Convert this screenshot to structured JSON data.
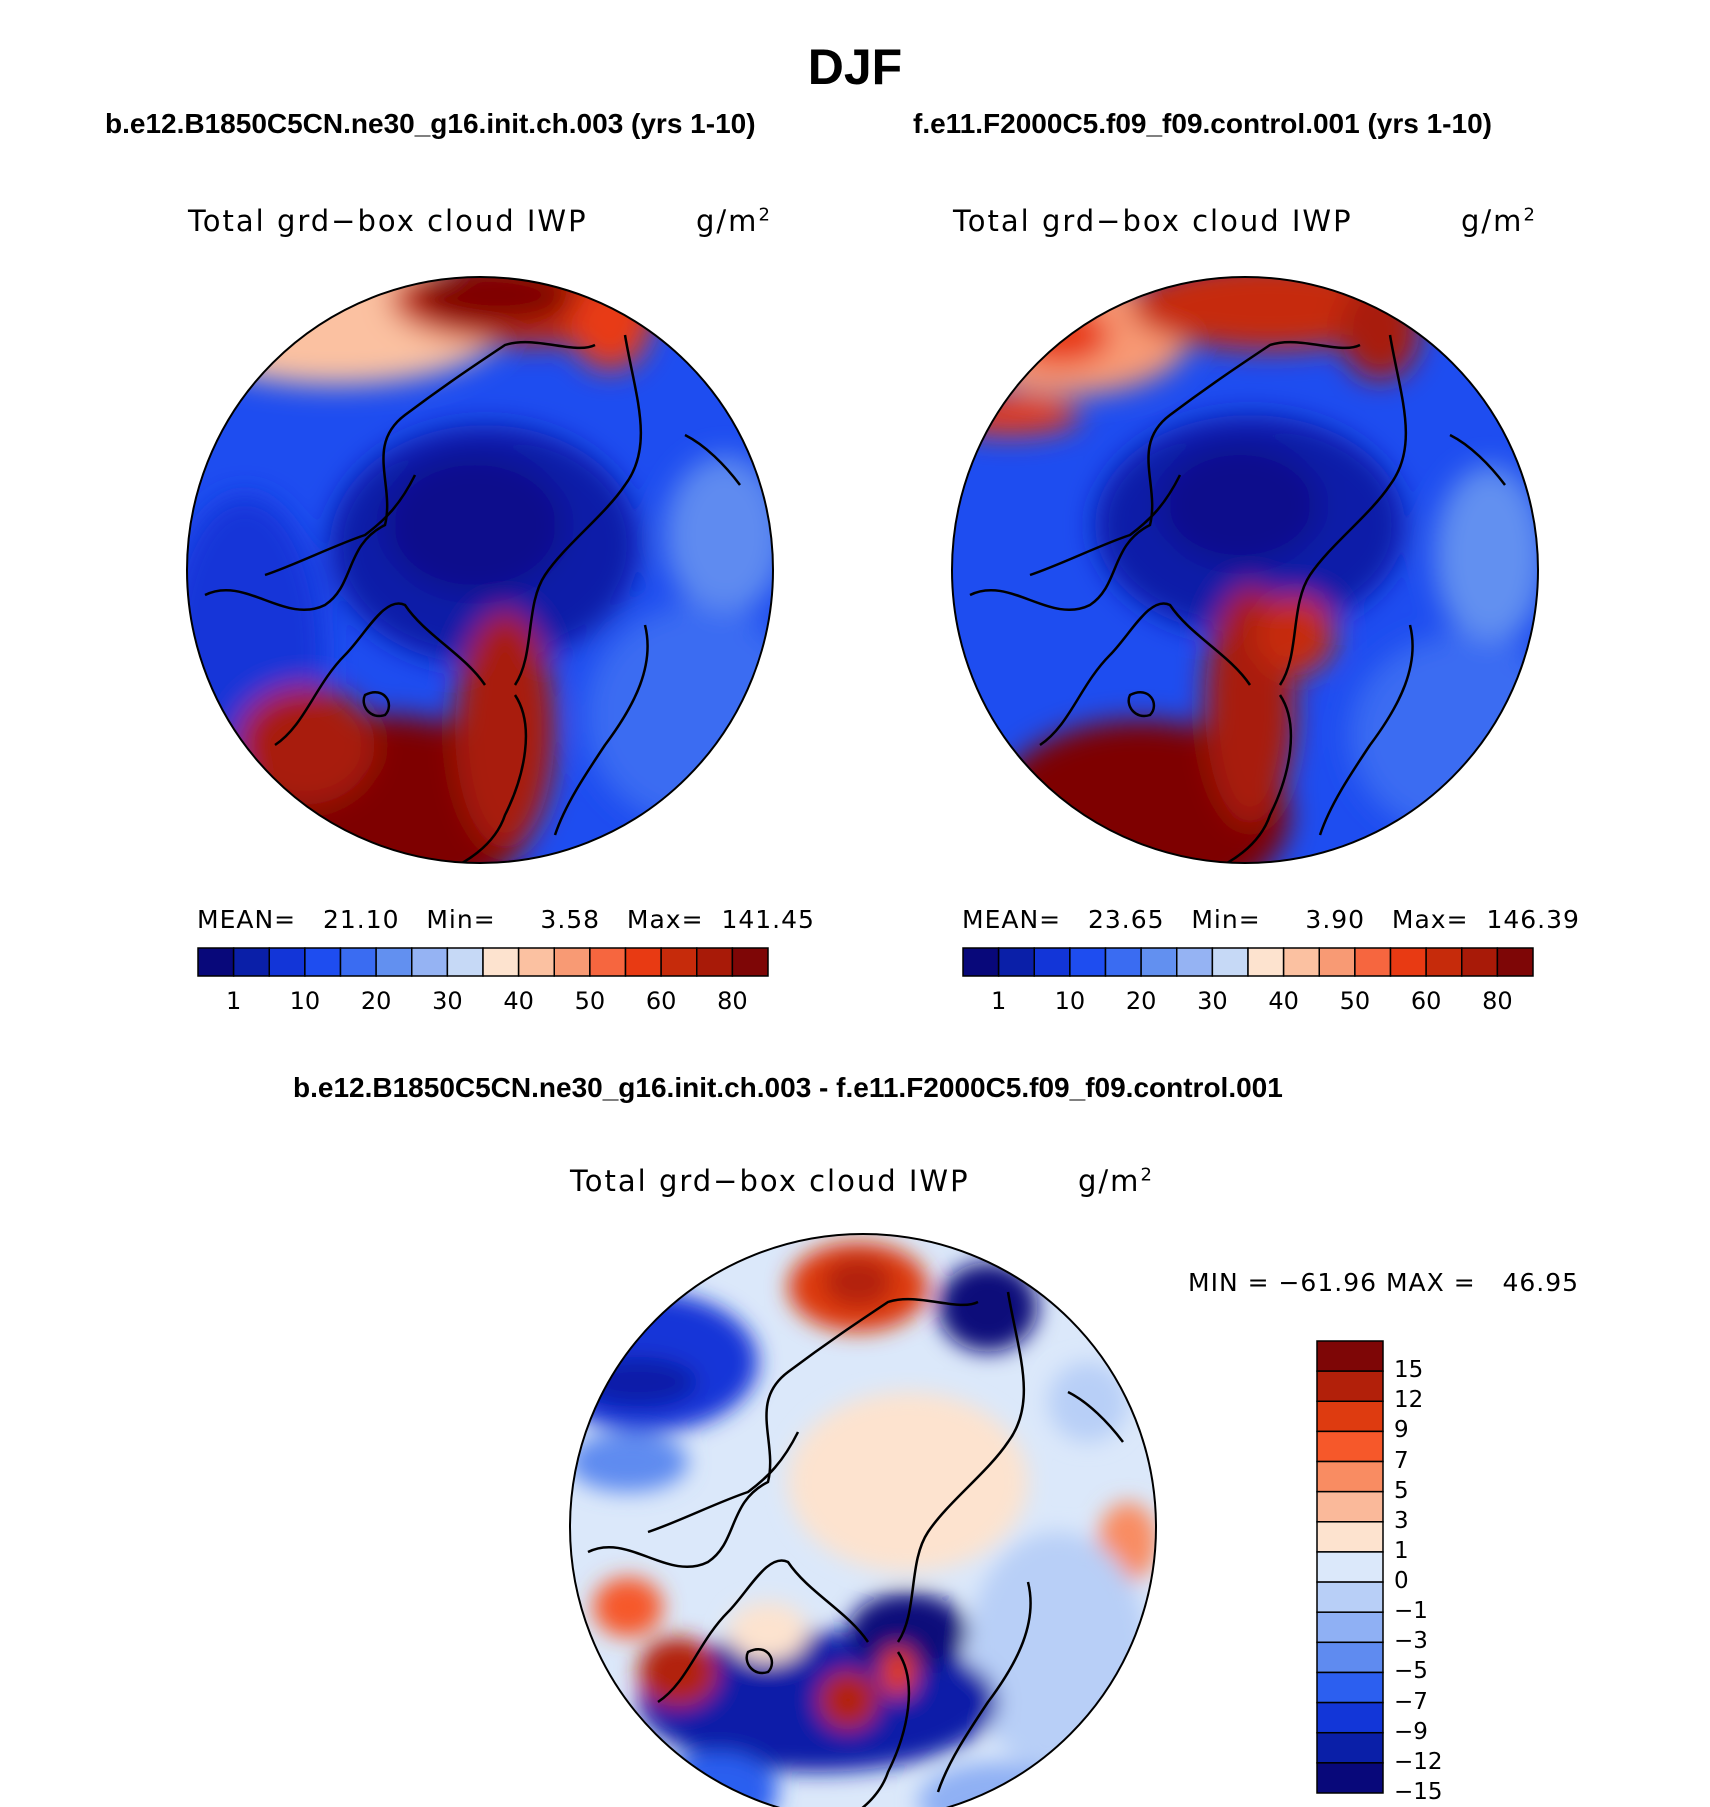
{
  "title": "DJF",
  "panel_left": {
    "case_title": "b.e12.B1850C5CN.ne30_g16.init.ch.003 (yrs 1-10)",
    "variable": "Total grd−box cloud IWP",
    "units": "g/m",
    "units_exp": "2",
    "stats": "MEAN=   21.10   Min=     3.58   Max=  141.45",
    "labels": [
      "1",
      "10",
      "20",
      "30",
      "40",
      "50",
      "60",
      "80"
    ]
  },
  "panel_right": {
    "case_title": "f.e11.F2000C5.f09_f09.control.001 (yrs 1-10)",
    "variable": "Total grd−box cloud IWP",
    "units": "g/m",
    "units_exp": "2",
    "stats": "MEAN=   23.65   Min=     3.90   Max=  146.39",
    "labels": [
      "1",
      "10",
      "20",
      "30",
      "40",
      "50",
      "60",
      "80"
    ]
  },
  "panel_diff": {
    "case_title": "b.e12.B1850C5CN.ne30_g16.init.ch.003 - f.e11.F2000C5.f09_f09.control.001",
    "variable": "Total grd−box cloud IWP",
    "units": "g/m",
    "units_exp": "2",
    "stats": "MIN = −61.96 MAX =   46.95",
    "labels": [
      "15",
      "12",
      "9",
      "7",
      "5",
      "3",
      "1",
      "0",
      "−1",
      "−3",
      "−5",
      "−7",
      "−9",
      "−12",
      "−15"
    ]
  },
  "colors": {
    "field_scale": [
      "#08087a",
      "#0a1fa8",
      "#1235d8",
      "#1e4df0",
      "#3a6cf2",
      "#6290f0",
      "#95b3f3",
      "#c6d9f6",
      "#fde3cf",
      "#fbc1a1",
      "#f89a74",
      "#f6663f",
      "#e83a13",
      "#c62b0b",
      "#a81a08",
      "#7e0606"
    ],
    "diff_scale": [
      "#7e0606",
      "#b2200a",
      "#de3b10",
      "#f6582a",
      "#f98c62",
      "#fab99a",
      "#fde3cf",
      "#dbe8fa",
      "#b8cff7",
      "#8fb0f4",
      "#5f8bf0",
      "#2c5ff0",
      "#1236d8",
      "#0a1fa8",
      "#08087a"
    ]
  }
}
